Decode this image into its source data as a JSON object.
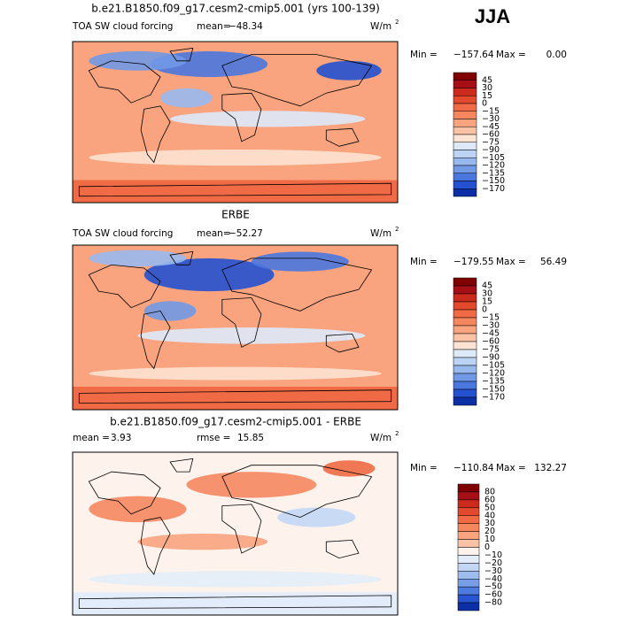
{
  "season": "JJA",
  "panels": [
    {
      "title": "b.e21.B1850.f09_g17.cesm2-cmip5.001 (yrs 100-139)",
      "field": "TOA SW cloud forcing",
      "mean_label": "mean=",
      "mean": "−48.34",
      "units": "W/m",
      "units_exp": "2",
      "min_label": "Min =",
      "min": "−157.64",
      "max_label": "Max =",
      "max": "0.00",
      "colorbar": {
        "labels": [
          "45",
          "30",
          "15",
          "0",
          "−15",
          "−30",
          "−45",
          "−60",
          "−75",
          "−90",
          "−105",
          "−120",
          "−135",
          "−150",
          "−170"
        ],
        "colors": [
          "#7f0000",
          "#a50f15",
          "#cb2a1c",
          "#e2492d",
          "#ef6a45",
          "#f5875f",
          "#f9a47f",
          "#fbc3a6",
          "#fde3d3",
          "#dde9f9",
          "#bcd3f4",
          "#98b9ee",
          "#7199e6",
          "#4a77de",
          "#2451d0",
          "#0c2fa8"
        ]
      }
    },
    {
      "title": "ERBE",
      "field": "TOA SW cloud forcing",
      "mean_label": "mean=",
      "mean": "−52.27",
      "units": "W/m",
      "units_exp": "2",
      "min_label": "Min =",
      "min": "−179.55",
      "max_label": "Max =",
      "max": "56.49",
      "colorbar": {
        "labels": [
          "45",
          "30",
          "15",
          "0",
          "−15",
          "−30",
          "−45",
          "−60",
          "−75",
          "−90",
          "−105",
          "−120",
          "−135",
          "−150",
          "−170"
        ],
        "colors": [
          "#7f0000",
          "#a50f15",
          "#cb2a1c",
          "#e2492d",
          "#ef6a45",
          "#f5875f",
          "#f9a47f",
          "#fbc3a6",
          "#fde3d3",
          "#dde9f9",
          "#bcd3f4",
          "#98b9ee",
          "#7199e6",
          "#4a77de",
          "#2451d0",
          "#0c2fa8"
        ]
      }
    },
    {
      "title": "b.e21.B1850.f09_g17.cesm2-cmip5.001 - ERBE",
      "mean_label": "mean =",
      "mean": "3.93",
      "rmse_label": "rmse =",
      "rmse": "15.85",
      "units": "W/m",
      "units_exp": "2",
      "min_label": "Min =",
      "min": "−110.84",
      "max_label": "Max =",
      "max": "132.27",
      "colorbar": {
        "labels": [
          "80",
          "60",
          "50",
          "40",
          "30",
          "20",
          "10",
          "0",
          "−10",
          "−20",
          "−30",
          "−40",
          "−50",
          "−60",
          "−80"
        ],
        "colors": [
          "#7f0000",
          "#a50f15",
          "#cb2a1c",
          "#e2492d",
          "#ef6a45",
          "#f5875f",
          "#f9a47f",
          "#fbc3a6",
          "#fdf2ec",
          "#e3edfa",
          "#c3d7f5",
          "#9ebdef",
          "#779de7",
          "#4e7bdf",
          "#2754d1",
          "#0c2fa8"
        ]
      }
    }
  ]
}
